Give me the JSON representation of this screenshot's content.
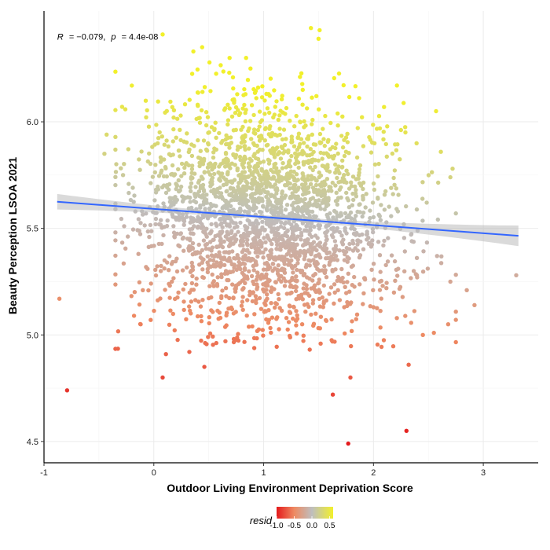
{
  "chart_data": {
    "type": "scatter",
    "xlabel": "Outdoor Living Environment Deprivation Score",
    "ylabel": "Beauty Perception LSOA 2021",
    "xlim": [
      -1.0,
      3.5
    ],
    "ylim": [
      4.4,
      6.52
    ],
    "x_ticks": [
      -1,
      0,
      1,
      2,
      3
    ],
    "y_ticks": [
      4.5,
      5.0,
      5.5,
      6.0
    ],
    "x_tick_labels": [
      "-1",
      "0",
      "1",
      "2",
      "3"
    ],
    "y_tick_labels": [
      "4.5",
      "5.0",
      "5.5",
      "6.0"
    ],
    "grid": true,
    "annotation": {
      "r_label": "R",
      "r_value": "= −0.079,",
      "p_label": "p",
      "p_value": "= 4.4e-08",
      "x": -0.88,
      "y": 6.4
    },
    "regression": {
      "x": [
        -0.88,
        3.32
      ],
      "y": [
        5.625,
        5.465
      ],
      "line_color": "#3366FF",
      "ci_color": "#BBBBBB"
    },
    "color_scale": {
      "title": "resid",
      "stops": [
        {
          "value": -1.0,
          "color": "#E41A1C"
        },
        {
          "value": -0.5,
          "color": "#EE8A62"
        },
        {
          "value": 0.0,
          "color": "#BEBEBE"
        },
        {
          "value": 0.6,
          "color": "#F2F02A"
        }
      ],
      "ticks": [
        -1.0,
        -0.5,
        0.0,
        0.5
      ],
      "tick_labels": [
        "-1.0",
        "-0.5",
        "0.0",
        "0.5"
      ],
      "legend_position": "bottom"
    },
    "series": [
      {
        "type": "scatter",
        "points": [
          [
            -0.86,
            5.17
          ],
          [
            -0.79,
            4.74
          ],
          [
            -0.43,
            5.94
          ],
          [
            -0.45,
            5.85
          ],
          [
            -0.28,
            5.75
          ],
          [
            -0.27,
            5.51
          ],
          [
            -0.2,
            6.17
          ],
          [
            -0.18,
            5.09
          ],
          [
            -0.12,
            5.05
          ],
          [
            -0.14,
            5.38
          ],
          [
            -0.1,
            5.21
          ],
          [
            0.08,
            4.8
          ],
          [
            0.11,
            4.91
          ],
          [
            0.08,
            6.41
          ],
          [
            0.36,
            6.33
          ],
          [
            0.44,
            6.35
          ],
          [
            0.46,
            4.85
          ],
          [
            0.69,
            6.3
          ],
          [
            0.84,
            6.3
          ],
          [
            0.88,
            6.25
          ],
          [
            1.43,
            6.44
          ],
          [
            1.51,
            6.43
          ],
          [
            1.5,
            6.39
          ],
          [
            1.63,
            4.72
          ],
          [
            1.77,
            4.49
          ],
          [
            1.79,
            4.8
          ],
          [
            2.3,
            4.55
          ],
          [
            2.32,
            4.86
          ],
          [
            2.45,
            5.0
          ],
          [
            2.55,
            5.01
          ],
          [
            2.57,
            6.05
          ],
          [
            2.7,
            5.74
          ],
          [
            2.68,
            5.05
          ],
          [
            2.72,
            5.78
          ],
          [
            2.85,
            5.21
          ],
          [
            2.92,
            5.14
          ],
          [
            3.3,
            5.28
          ],
          [
            2.7,
            5.25
          ]
        ],
        "cloud": {
          "count": 2600,
          "x_mean": 1.03,
          "x_sd": 0.58,
          "y_intercept": 5.59,
          "y_slope": -0.038,
          "y_sd": 0.26,
          "seed": 7
        }
      }
    ]
  }
}
